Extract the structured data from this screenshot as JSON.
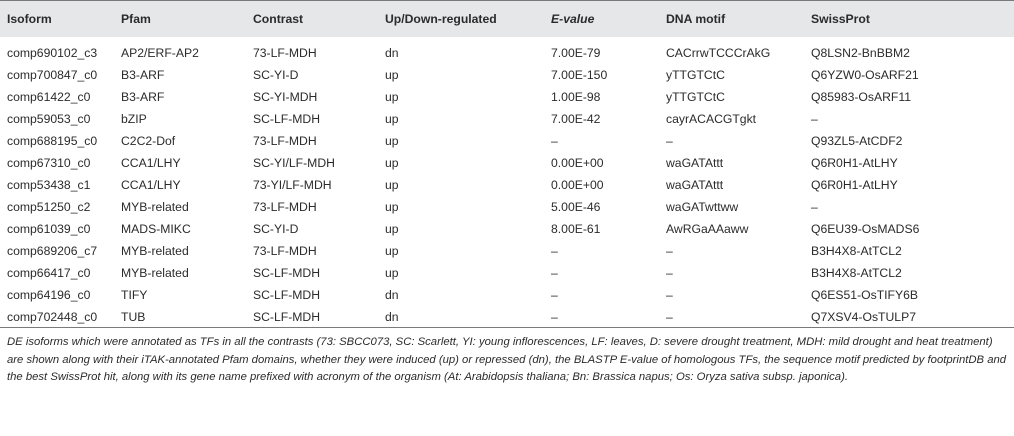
{
  "headers": {
    "isoform": "Isoform",
    "pfam": "Pfam",
    "contrast": "Contrast",
    "regulation": "Up/Down-regulated",
    "evalue": "E-value",
    "motif": "DNA motif",
    "swissprot": "SwissProt"
  },
  "rows": [
    {
      "isoform": "comp690102_c3",
      "pfam": "AP2/ERF-AP2",
      "contrast": "73-LF-MDH",
      "reg": "dn",
      "evalue": "7.00E-79",
      "motif": "CACrrwTCCCrAkG",
      "swissprot": "Q8LSN2-BnBBM2"
    },
    {
      "isoform": "comp700847_c0",
      "pfam": "B3-ARF",
      "contrast": "SC-YI-D",
      "reg": "up",
      "evalue": "7.00E-150",
      "motif": "yTTGTCtC",
      "swissprot": "Q6YZW0-OsARF21"
    },
    {
      "isoform": "comp61422_c0",
      "pfam": "B3-ARF",
      "contrast": "SC-YI-MDH",
      "reg": "up",
      "evalue": "1.00E-98",
      "motif": "yTTGTCtC",
      "swissprot": "Q85983-OsARF11"
    },
    {
      "isoform": "comp59053_c0",
      "pfam": "bZIP",
      "contrast": "SC-LF-MDH",
      "reg": "up",
      "evalue": "7.00E-42",
      "motif": "cayrACACGTgkt",
      "swissprot": "–"
    },
    {
      "isoform": "comp688195_c0",
      "pfam": "C2C2-Dof",
      "contrast": "73-LF-MDH",
      "reg": "up",
      "evalue": "–",
      "motif": "–",
      "swissprot": "Q93ZL5-AtCDF2"
    },
    {
      "isoform": "comp67310_c0",
      "pfam": "CCA1/LHY",
      "contrast": "SC-YI/LF-MDH",
      "reg": "up",
      "evalue": "0.00E+00",
      "motif": "waGATAttt",
      "swissprot": "Q6R0H1-AtLHY"
    },
    {
      "isoform": "comp53438_c1",
      "pfam": "CCA1/LHY",
      "contrast": "73-YI/LF-MDH",
      "reg": "up",
      "evalue": "0.00E+00",
      "motif": "waGATAttt",
      "swissprot": "Q6R0H1-AtLHY"
    },
    {
      "isoform": "comp51250_c2",
      "pfam": "MYB-related",
      "contrast": "73-LF-MDH",
      "reg": "up",
      "evalue": "5.00E-46",
      "motif": "waGATwttww",
      "swissprot": "–"
    },
    {
      "isoform": "comp61039_c0",
      "pfam": "MADS-MIKC",
      "contrast": "SC-YI-D",
      "reg": "up",
      "evalue": "8.00E-61",
      "motif": "AwRGaAAaww",
      "swissprot": "Q6EU39-OsMADS6"
    },
    {
      "isoform": "comp689206_c7",
      "pfam": "MYB-related",
      "contrast": "73-LF-MDH",
      "reg": "up",
      "evalue": "–",
      "motif": "–",
      "swissprot": "B3H4X8-AtTCL2"
    },
    {
      "isoform": "comp66417_c0",
      "pfam": "MYB-related",
      "contrast": "SC-LF-MDH",
      "reg": "up",
      "evalue": "–",
      "motif": "–",
      "swissprot": "B3H4X8-AtTCL2"
    },
    {
      "isoform": "comp64196_c0",
      "pfam": "TIFY",
      "contrast": "SC-LF-MDH",
      "reg": "dn",
      "evalue": "–",
      "motif": "–",
      "swissprot": "Q6ES51-OsTIFY6B"
    },
    {
      "isoform": "comp702448_c0",
      "pfam": "TUB",
      "contrast": "SC-LF-MDH",
      "reg": "dn",
      "evalue": "–",
      "motif": "–",
      "swissprot": "Q7XSV4-OsTULP7"
    }
  ],
  "caption": "DE isoforms which were annotated as TFs in all the contrasts (73: SBCC073, SC: Scarlett, YI: young inflorescences, LF: leaves, D: severe drought treatment, MDH: mild drought and heat treatment) are shown along with their iTAK-annotated Pfam domains, whether they were induced (up) or repressed (dn), the BLASTP E-value of homologous TFs, the sequence motif predicted by footprintDB and the best SwissProt hit, along with its gene name prefixed with acronym of the organism (At: Arabidopsis thaliana; Bn: Brassica napus; Os: Oryza sativa subsp. japonica)."
}
